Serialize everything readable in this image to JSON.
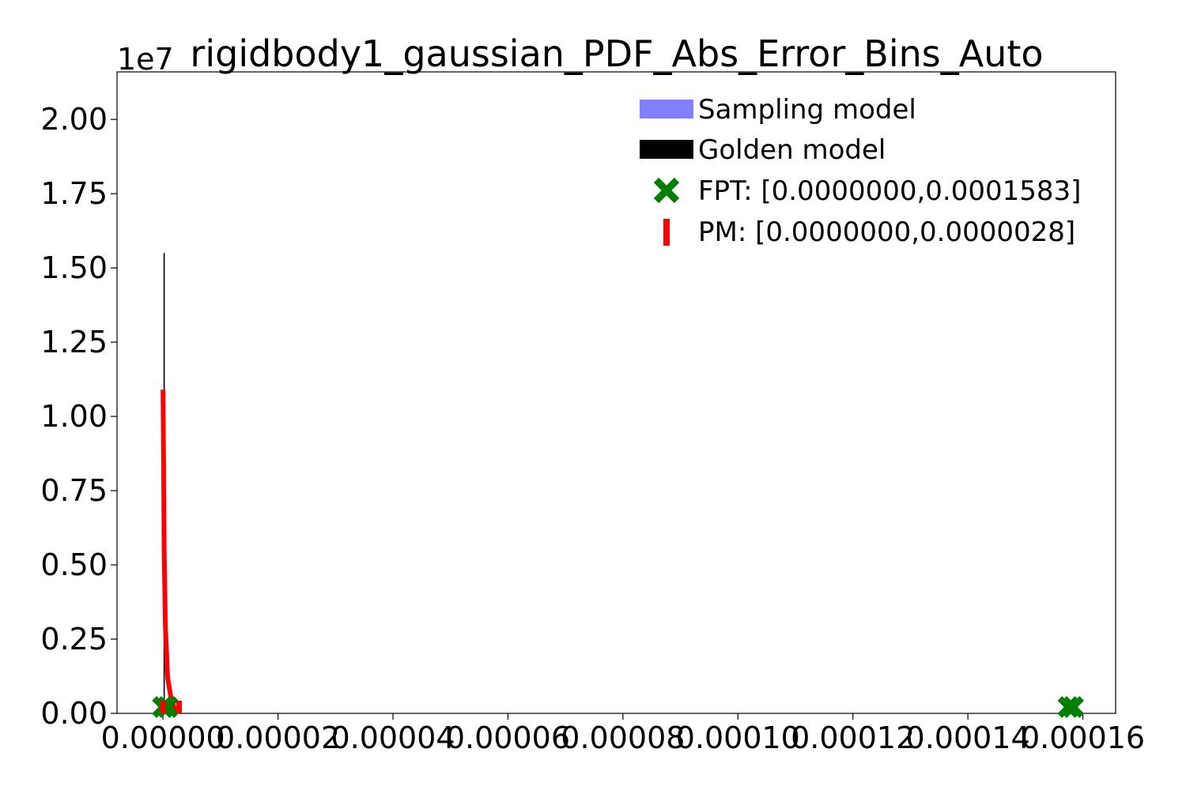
{
  "chart_data": {
    "type": "histogram",
    "title": "rigidbody1_gaussian_PDF_Abs_Error_Bins_Auto",
    "xlabel": "",
    "ylabel": "",
    "y_scale_label": "1e7",
    "xlim": [
      -8e-06,
      0.0001657
    ],
    "ylim": [
      0,
      2.16
    ],
    "x_ticks": [
      0.0,
      2e-05,
      4e-05,
      6e-05,
      8e-05,
      0.0001,
      0.00012,
      0.00014,
      0.00016
    ],
    "x_tick_labels": [
      "0.00000",
      "0.00002",
      "0.00004",
      "0.00006",
      "0.00008",
      "0.00010",
      "0.00012",
      "0.00014",
      "0.00016"
    ],
    "y_ticks": [
      0.0,
      0.25,
      0.5,
      0.75,
      1.0,
      1.25,
      1.5,
      1.75,
      2.0
    ],
    "y_tick_labels": [
      "0.00",
      "0.25",
      "0.50",
      "0.75",
      "1.00",
      "1.25",
      "1.50",
      "1.75",
      "2.00"
    ],
    "grid": false,
    "legend_position": "top-right",
    "series": [
      {
        "name": "Sampling model",
        "kind": "histogram",
        "color": "#8080ff",
        "bins": []
      },
      {
        "name": "Golden model",
        "kind": "histogram-line",
        "color": "#000000",
        "x": [
          2e-07,
          2e-07
        ],
        "y": [
          0,
          1.55
        ]
      },
      {
        "name": "",
        "kind": "density-curve",
        "color": "#ff0000",
        "x": [
          0.0,
          1e-07,
          2e-07,
          4e-07,
          8e-07,
          1.5e-06,
          2.2e-06,
          2.8e-06
        ],
        "y": [
          1.09,
          0.85,
          0.55,
          0.3,
          0.12,
          0.04,
          0.01,
          0.0
        ]
      },
      {
        "name": "FPT: [0.0000000,0.0001583]",
        "kind": "markers",
        "marker": "X",
        "color": "#008000",
        "x": [
          0.0,
          8e-07,
          0.0001575,
          0.0001583
        ],
        "y": [
          0.0,
          0.0,
          0.0,
          0.0
        ]
      },
      {
        "name": "PM: [0.0000000,0.0000028]",
        "kind": "markers",
        "marker": "|",
        "color": "#ff0000",
        "x": [
          0.0,
          2.8e-06
        ],
        "y": [
          0.0,
          0.0
        ]
      }
    ]
  }
}
